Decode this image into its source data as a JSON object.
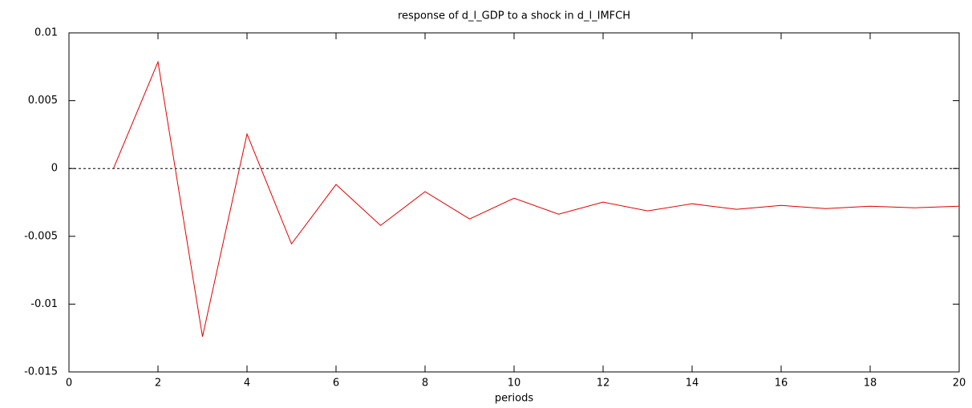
{
  "chart_data": {
    "type": "line",
    "title": "response of d_l_GDP to a shock in d_l_IMFCH",
    "xlabel": "periods",
    "x": [
      1,
      2,
      3,
      4,
      5,
      6,
      7,
      8,
      9,
      10,
      11,
      12,
      13,
      14,
      15,
      16,
      17,
      18,
      19,
      20
    ],
    "values": [
      0,
      0.00786,
      -0.0124,
      0.00254,
      -0.00556,
      -0.00118,
      -0.0042,
      -0.00171,
      -0.00372,
      -0.00219,
      -0.00337,
      -0.00248,
      -0.00313,
      -0.0026,
      -0.00301,
      -0.00272,
      -0.00296,
      -0.00278,
      -0.0029,
      -0.00278
    ],
    "color": "#e00000",
    "xlim": [
      0,
      20
    ],
    "xticks": [
      0,
      2,
      4,
      6,
      8,
      10,
      12,
      14,
      16,
      18,
      20
    ],
    "ylim": [
      -0.015,
      0.01
    ],
    "yticks": [
      0.01,
      0.005,
      0,
      -0.005,
      -0.01,
      -0.015
    ],
    "zeroline": true
  }
}
